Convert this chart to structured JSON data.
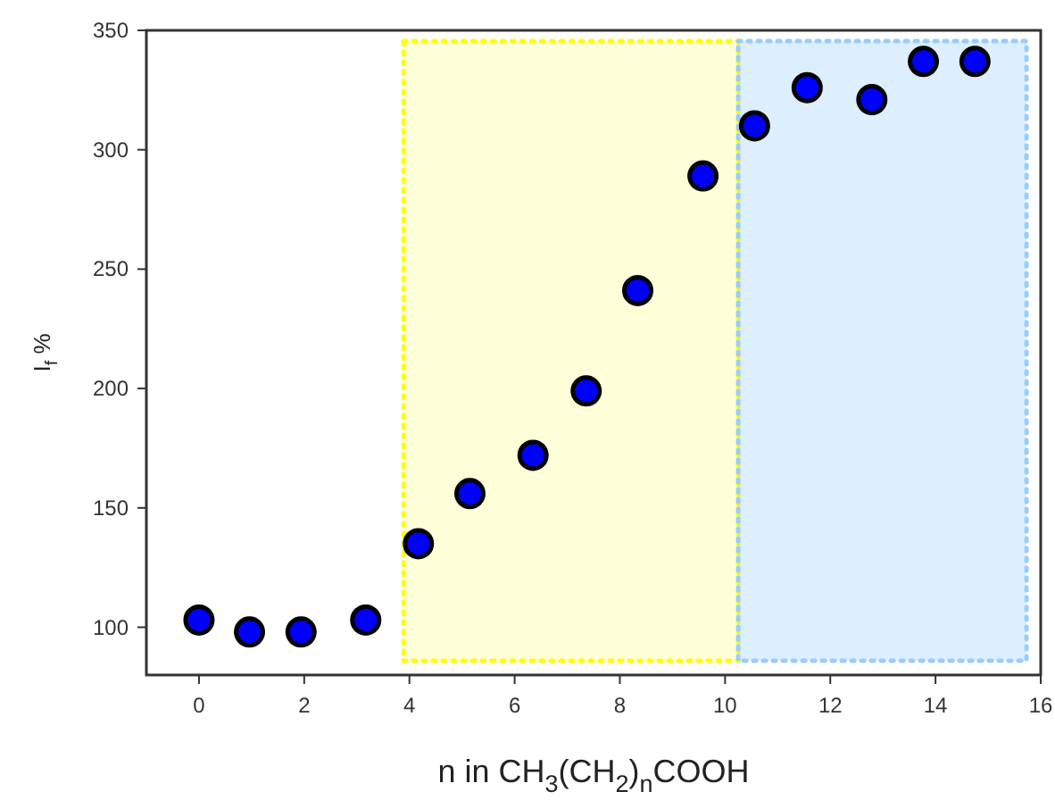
{
  "chart_data": {
    "type": "scatter",
    "xlabel": "n in CH$_{3}$(CH$_{2}$)$_{n}$COOH",
    "ylabel": "I$_{f}$ %",
    "xlim": [
      -1,
      16
    ],
    "xticks": [
      0,
      2,
      4,
      6,
      8,
      10,
      12,
      14,
      16
    ],
    "ylim": [
      80,
      350
    ],
    "yticks": [
      100,
      150,
      200,
      250,
      300,
      350
    ],
    "grid": false,
    "marker": "circle",
    "series": [
      {
        "color": "#0000ff",
        "x": [
          0,
          0.96,
          1.94,
          3.17,
          4.17,
          5.15,
          6.35,
          7.36,
          8.34,
          9.58,
          10.56,
          11.56,
          12.79,
          13.77,
          14.75
        ],
        "values": [
          103,
          98,
          98,
          103,
          135,
          156,
          172,
          199,
          241,
          289,
          310,
          326,
          321,
          337,
          337
        ]
      }
    ],
    "bands": [
      {
        "axis": "x",
        "from": 3.89,
        "to": 10.25,
        "color": "#ffff00"
      },
      {
        "axis": "x",
        "from": 10.25,
        "to": 15.73,
        "color": "#99ccff"
      }
    ]
  }
}
